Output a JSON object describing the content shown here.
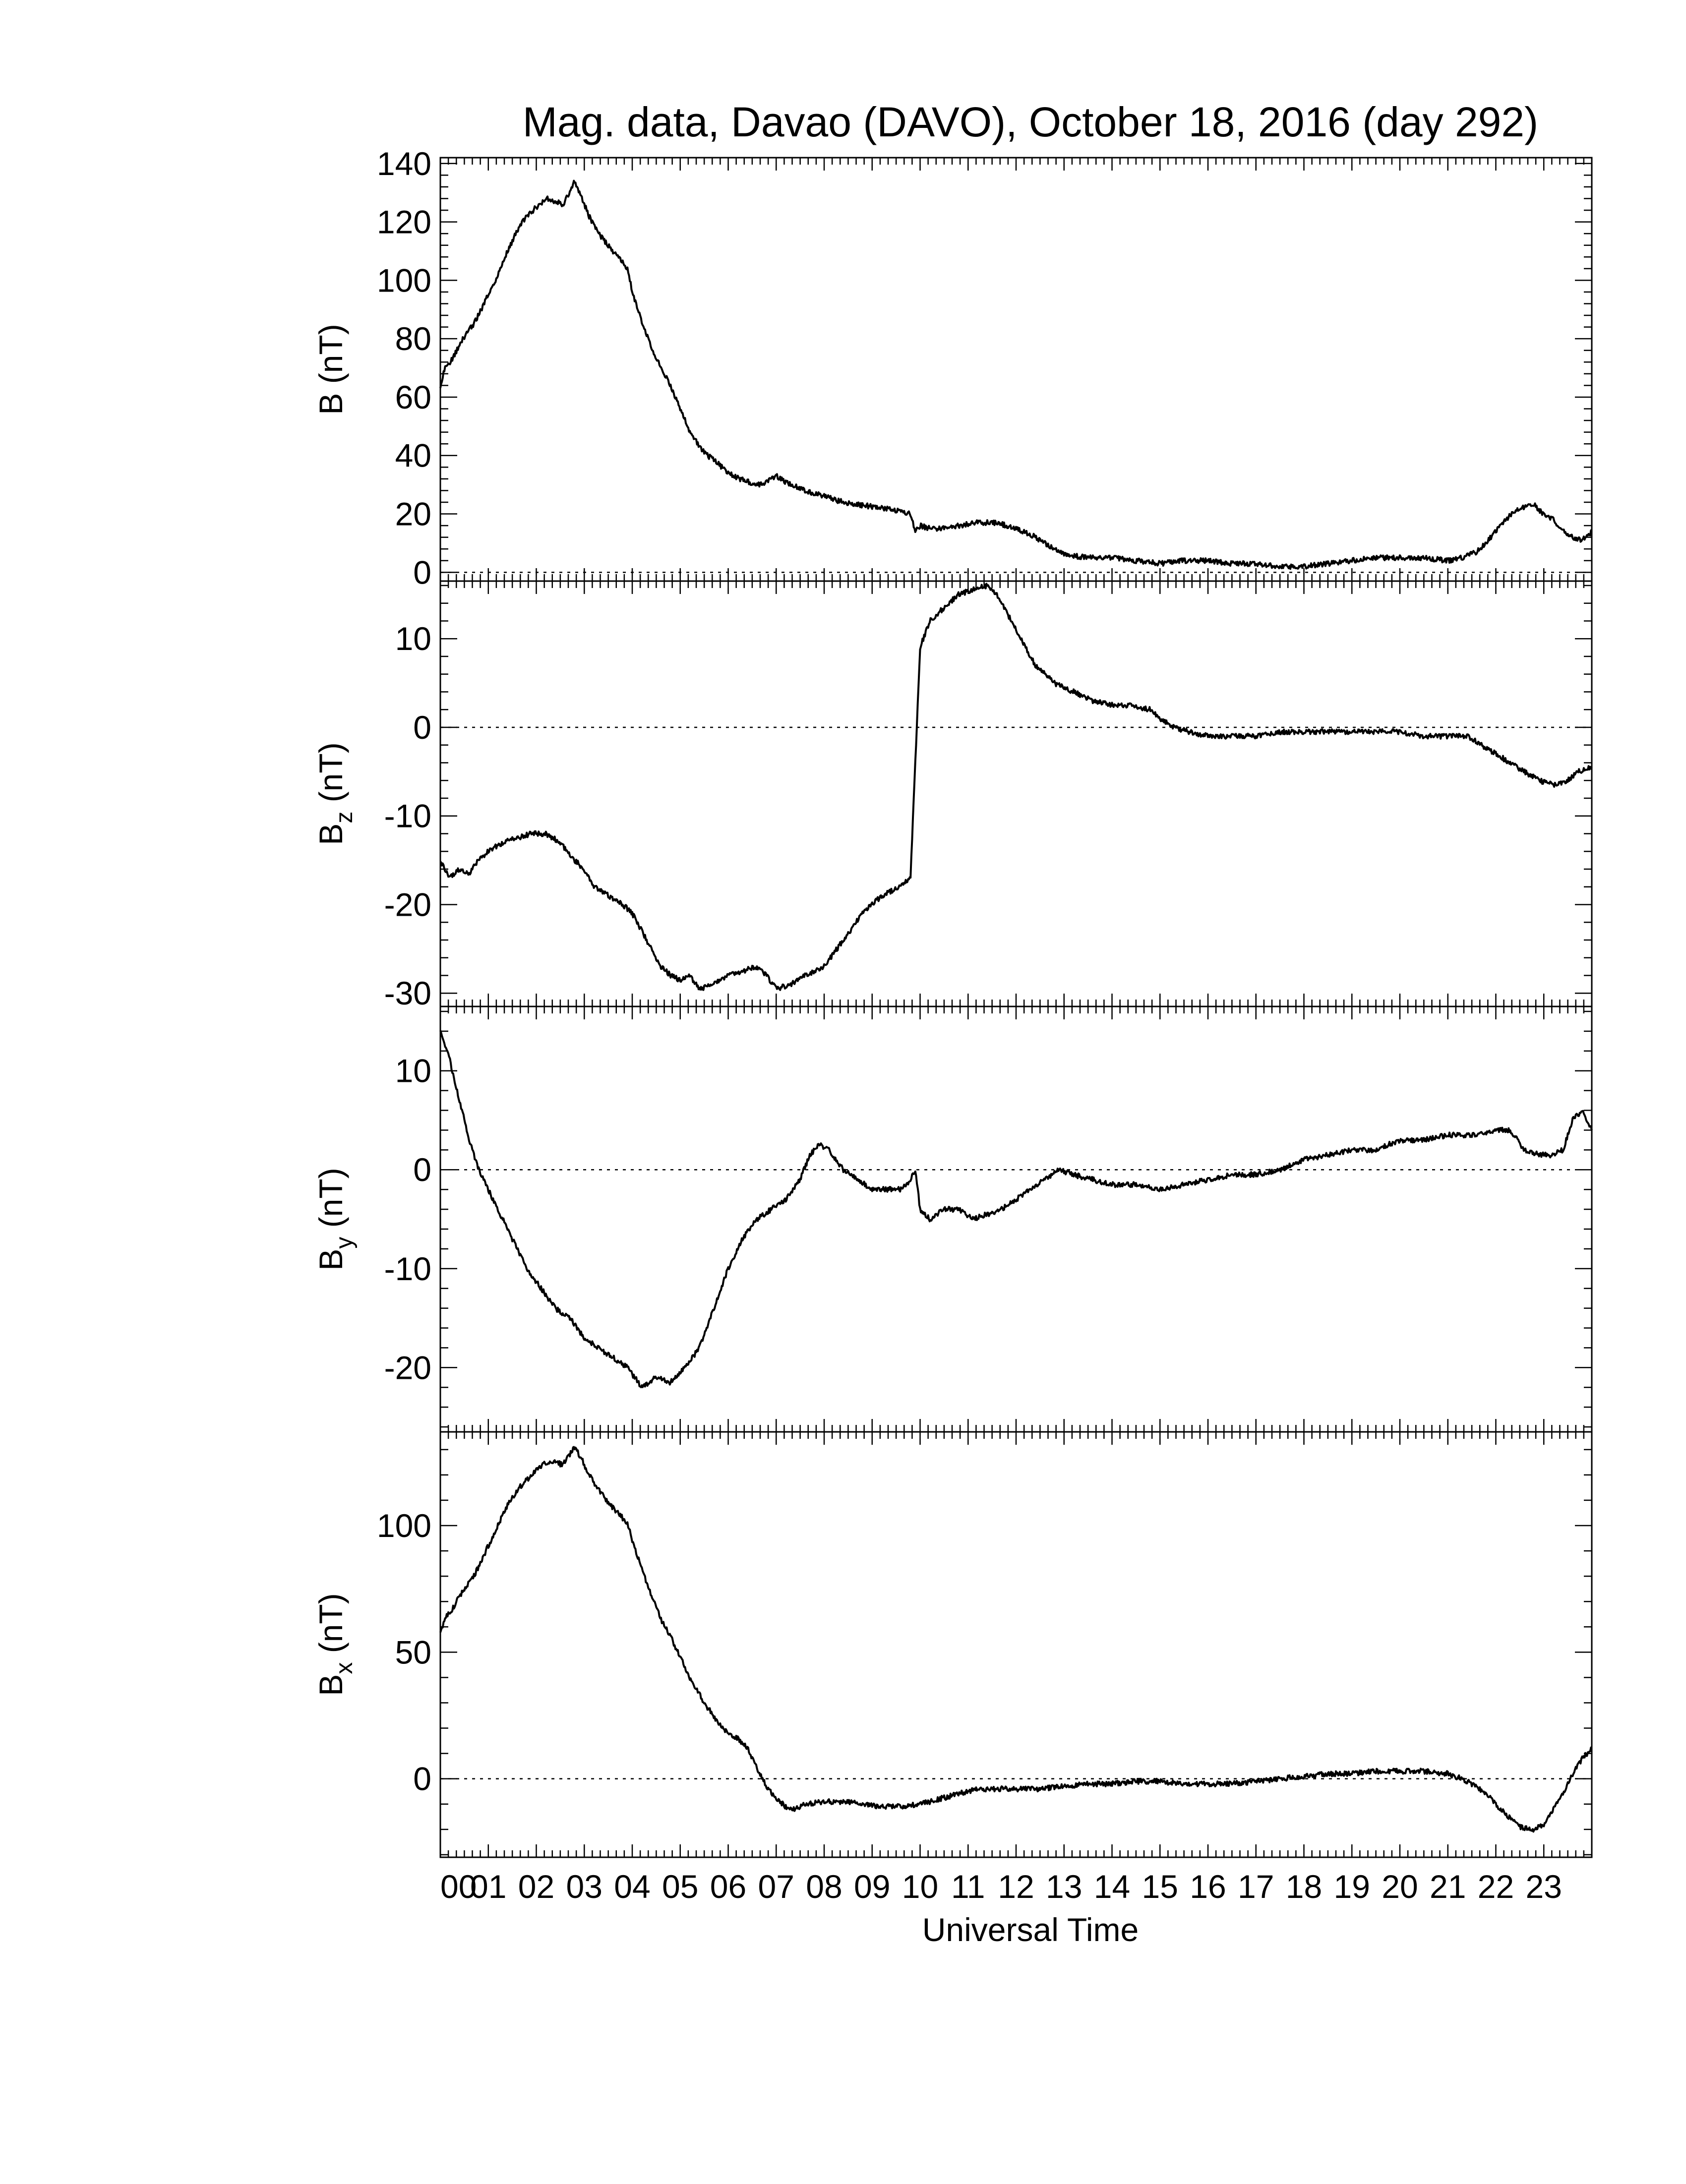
{
  "figure": {
    "title": "Mag. data, Davao (DAVO), October 18, 2016 (day 292)",
    "xlabel": "Universal Time",
    "line_color": "#000000",
    "background": "#ffffff"
  },
  "chart_data": [
    {
      "type": "line",
      "panel": "B",
      "ylabel": "B (nT)",
      "ylabel_main": "B",
      "ylabel_sub": "",
      "ylabel_units": " (nT)",
      "ylim": [
        -3,
        142
      ],
      "yticks": [
        0,
        20,
        40,
        60,
        80,
        100,
        120,
        140
      ],
      "ytick_labels": [
        "0",
        "20",
        "40",
        "60",
        "80",
        "100",
        "120",
        "140"
      ],
      "xlim": [
        0,
        24
      ],
      "zero_line": true,
      "x": [
        0.0,
        0.1,
        0.25,
        0.4,
        0.55,
        0.7,
        0.85,
        1.0,
        1.2,
        1.4,
        1.6,
        1.8,
        2.0,
        2.2,
        2.4,
        2.55,
        2.7,
        2.8,
        2.95,
        3.1,
        3.3,
        3.5,
        3.7,
        3.9,
        4.0,
        4.2,
        4.4,
        4.6,
        4.8,
        5.0,
        5.2,
        5.5,
        5.8,
        6.1,
        6.4,
        6.7,
        7.0,
        7.3,
        7.6,
        8.0,
        8.4,
        8.8,
        9.2,
        9.6,
        9.8,
        9.9,
        10.0,
        10.2,
        10.5,
        10.8,
        11.2,
        11.6,
        12.0,
        12.3,
        12.7,
        13.0,
        13.5,
        14.0,
        14.5,
        15.0,
        15.5,
        16.0,
        16.5,
        17.0,
        17.5,
        18.0,
        18.5,
        19.0,
        19.5,
        20.0,
        20.5,
        21.0,
        21.3,
        21.6,
        21.9,
        22.2,
        22.5,
        22.8,
        23.0,
        23.2,
        23.4,
        23.6,
        23.8,
        24.0
      ],
      "values": [
        64,
        70,
        73,
        78,
        82,
        85,
        90,
        95,
        102,
        110,
        117,
        122,
        125,
        128,
        127,
        126,
        130,
        134,
        128,
        122,
        116,
        112,
        108,
        104,
        96,
        86,
        77,
        70,
        64,
        56,
        48,
        41,
        37,
        33,
        31,
        30,
        33,
        30,
        28,
        26,
        24,
        23,
        22,
        21,
        20,
        14,
        16,
        15,
        15,
        16,
        17,
        17,
        15,
        13,
        9,
        6,
        5,
        5,
        4,
        3,
        4,
        4,
        3,
        3,
        2,
        2,
        3,
        4,
        5,
        5,
        5,
        4,
        5,
        7,
        12,
        18,
        22,
        23,
        20,
        18,
        14,
        12,
        11,
        14
      ]
    },
    {
      "type": "line",
      "panel": "Bz",
      "ylabel": "Bz (nT)",
      "ylabel_main": "B",
      "ylabel_sub": "z",
      "ylabel_units": " (nT)",
      "ylim": [
        -31.5,
        16.5
      ],
      "yticks": [
        -30,
        -20,
        -10,
        0,
        10
      ],
      "ytick_labels": [
        "-30",
        "-20",
        "-10",
        "0",
        "10"
      ],
      "xlim": [
        0,
        24
      ],
      "zero_line": true,
      "x": [
        0.0,
        0.2,
        0.4,
        0.6,
        0.8,
        1.0,
        1.3,
        1.6,
        1.9,
        2.2,
        2.5,
        2.8,
        3.0,
        3.2,
        3.5,
        3.8,
        4.0,
        4.2,
        4.4,
        4.6,
        4.8,
        5.0,
        5.2,
        5.4,
        5.7,
        6.0,
        6.3,
        6.6,
        6.8,
        7.0,
        7.3,
        7.6,
        8.0,
        8.4,
        8.8,
        9.2,
        9.6,
        9.8,
        10.0,
        10.2,
        10.5,
        10.8,
        11.1,
        11.4,
        11.6,
        11.8,
        12.0,
        12.4,
        12.8,
        13.2,
        13.6,
        14.0,
        14.4,
        14.8,
        15.0,
        15.3,
        15.6,
        16.0,
        16.5,
        17.0,
        17.5,
        18.0,
        18.5,
        19.0,
        19.5,
        20.0,
        20.5,
        21.0,
        21.4,
        21.7,
        22.0,
        22.3,
        22.6,
        22.9,
        23.2,
        23.5,
        23.7,
        24.0
      ],
      "values": [
        -15,
        -17,
        -16,
        -16.5,
        -15,
        -14,
        -13,
        -12.5,
        -12,
        -12,
        -13,
        -15,
        -16,
        -18,
        -19,
        -20,
        -21,
        -23,
        -25,
        -27,
        -28,
        -28.5,
        -28,
        -29.5,
        -29,
        -28,
        -27.5,
        -27,
        -28,
        -29.5,
        -29,
        -28,
        -27,
        -24,
        -21,
        -19,
        -18,
        -17,
        9,
        12,
        13.5,
        15,
        15.5,
        16,
        15,
        13,
        11,
        7,
        5,
        4,
        3,
        2.5,
        2.5,
        2,
        1,
        0,
        -0.5,
        -1,
        -1,
        -1,
        -0.5,
        -0.5,
        -0.5,
        -0.5,
        -0.5,
        -0.5,
        -1,
        -1,
        -1,
        -2,
        -3,
        -4,
        -5,
        -6,
        -6.5,
        -6,
        -5,
        -4.5
      ]
    },
    {
      "type": "line",
      "panel": "By",
      "ylabel": "By (nT)",
      "ylabel_main": "B",
      "ylabel_sub": "y",
      "ylabel_units": " (nT)",
      "ylim": [
        -26.5,
        16.5
      ],
      "yticks": [
        -20,
        -10,
        0,
        10
      ],
      "ytick_labels": [
        "-20",
        "-10",
        "0",
        "10"
      ],
      "xlim": [
        0,
        24
      ],
      "zero_line": true,
      "x": [
        0.0,
        0.15,
        0.3,
        0.45,
        0.6,
        0.8,
        1.0,
        1.2,
        1.5,
        1.8,
        2.1,
        2.4,
        2.7,
        3.0,
        3.3,
        3.6,
        3.9,
        4.2,
        4.5,
        4.8,
        5.1,
        5.4,
        5.7,
        6.0,
        6.3,
        6.6,
        6.9,
        7.2,
        7.5,
        7.7,
        7.9,
        8.1,
        8.4,
        8.7,
        9.0,
        9.3,
        9.6,
        9.8,
        9.9,
        10.0,
        10.2,
        10.5,
        10.8,
        11.1,
        11.4,
        11.7,
        12.0,
        12.3,
        12.6,
        12.9,
        13.2,
        13.6,
        14.0,
        14.5,
        15.0,
        15.5,
        16.0,
        16.5,
        17.0,
        17.5,
        18.0,
        18.5,
        19.0,
        19.5,
        20.0,
        20.5,
        21.0,
        21.5,
        22.0,
        22.3,
        22.6,
        22.9,
        23.2,
        23.4,
        23.6,
        23.8,
        24.0
      ],
      "values": [
        14,
        12,
        9,
        6,
        3,
        0,
        -2,
        -4,
        -7,
        -10,
        -12,
        -14,
        -15,
        -17,
        -18,
        -19,
        -20,
        -22,
        -21,
        -21.5,
        -20,
        -18,
        -14,
        -10,
        -7,
        -5,
        -4,
        -3,
        -1,
        1.5,
        2.5,
        2,
        0,
        -1,
        -2,
        -2,
        -2,
        -1,
        0,
        -4,
        -5,
        -4,
        -4,
        -5,
        -4.5,
        -4,
        -3,
        -2,
        -1,
        0,
        -0.5,
        -1,
        -1.5,
        -1.5,
        -2,
        -1.5,
        -1,
        -0.5,
        -0.5,
        0,
        1,
        1.5,
        2,
        2,
        3,
        3,
        3.5,
        3.5,
        4,
        4,
        2,
        1.5,
        1.5,
        2,
        5,
        6,
        4
      ]
    },
    {
      "type": "line",
      "panel": "Bx",
      "ylabel": "Bx (nT)",
      "ylabel_main": "B",
      "ylabel_sub": "x",
      "ylabel_units": " (nT)",
      "ylim": [
        -31,
        137
      ],
      "yticks": [
        0,
        50,
        100
      ],
      "ytick_labels": [
        "0",
        "50",
        "100"
      ],
      "xlim": [
        0,
        24
      ],
      "zero_line": true,
      "x": [
        0.0,
        0.1,
        0.25,
        0.4,
        0.55,
        0.7,
        0.85,
        1.0,
        1.2,
        1.4,
        1.6,
        1.8,
        2.0,
        2.2,
        2.4,
        2.55,
        2.7,
        2.8,
        2.95,
        3.1,
        3.3,
        3.5,
        3.7,
        3.9,
        4.0,
        4.2,
        4.4,
        4.6,
        4.8,
        5.0,
        5.2,
        5.5,
        5.8,
        6.0,
        6.2,
        6.4,
        6.6,
        6.8,
        7.0,
        7.2,
        7.4,
        7.6,
        8.0,
        8.4,
        8.8,
        9.2,
        9.6,
        10.0,
        10.4,
        10.8,
        11.2,
        11.6,
        12.0,
        12.5,
        13.0,
        13.5,
        14.0,
        14.5,
        15.0,
        15.5,
        16.0,
        16.5,
        17.0,
        17.5,
        18.0,
        18.5,
        19.0,
        19.5,
        20.0,
        20.5,
        21.0,
        21.3,
        21.6,
        21.9,
        22.2,
        22.5,
        22.8,
        23.0,
        23.2,
        23.4,
        23.6,
        23.8,
        24.0
      ],
      "values": [
        57,
        64,
        67,
        72,
        76,
        80,
        86,
        92,
        100,
        108,
        114,
        118,
        122,
        125,
        125,
        124,
        128,
        131,
        126,
        120,
        114,
        109,
        105,
        101,
        94,
        83,
        72,
        63,
        56,
        48,
        40,
        30,
        22,
        18,
        16,
        12,
        4,
        -3,
        -8,
        -11,
        -12,
        -10,
        -9,
        -9,
        -10,
        -11,
        -11,
        -10,
        -8,
        -6,
        -4,
        -4,
        -4,
        -4,
        -3,
        -2,
        -2,
        -1,
        -1,
        -2,
        -2,
        -2,
        -1,
        0,
        1,
        2,
        2,
        3,
        3,
        3,
        2,
        0,
        -3,
        -8,
        -14,
        -19,
        -20,
        -18,
        -12,
        -6,
        2,
        8,
        12
      ]
    }
  ],
  "x_axis": {
    "tick_labels": [
      "00",
      "01",
      "02",
      "03",
      "04",
      "05",
      "06",
      "07",
      "08",
      "09",
      "10",
      "11",
      "12",
      "13",
      "14",
      "15",
      "16",
      "17",
      "18",
      "19",
      "20",
      "21",
      "22",
      "23"
    ]
  }
}
